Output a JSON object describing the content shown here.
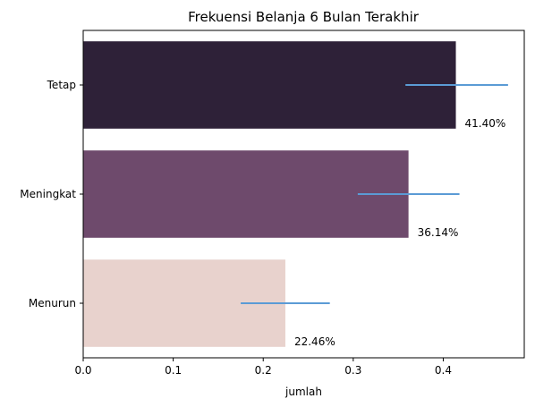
{
  "chart_data": {
    "type": "bar",
    "orientation": "horizontal",
    "title": "Frekuensi Belanja 6 Bulan Terakhir",
    "xlabel": "jumlah",
    "ylabel": "",
    "xlim": [
      0,
      0.49
    ],
    "xticks": [
      "0.0",
      "0.1",
      "0.2",
      "0.3",
      "0.4"
    ],
    "categories": [
      "Tetap",
      "Meningkat",
      "Menurun"
    ],
    "values": [
      0.414,
      0.3614,
      0.2246
    ],
    "value_labels": [
      "41.40%",
      "36.14%",
      "22.46%"
    ],
    "error_bars": [
      [
        0.358,
        0.472
      ],
      [
        0.305,
        0.418
      ],
      [
        0.175,
        0.274
      ]
    ],
    "bar_colors": [
      "#2e2138",
      "#6e4a6c",
      "#e8d2cd"
    ],
    "error_color": "#5b9bd5",
    "grid": false
  }
}
